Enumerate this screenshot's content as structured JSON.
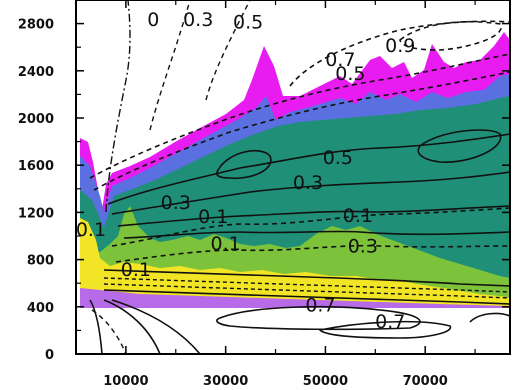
{
  "chart_data": {
    "type": "contour",
    "title": "",
    "xlabel": "",
    "ylabel": "",
    "xlim": [
      0,
      87000
    ],
    "ylim": [
      0,
      3000
    ],
    "x_ticks": [
      10000,
      30000,
      50000,
      70000
    ],
    "x_tick_labels": [
      "10000",
      "30000",
      "50000",
      "70000"
    ],
    "y_ticks": [
      0,
      400,
      800,
      1200,
      1600,
      2000,
      2400,
      2800
    ],
    "y_tick_labels": [
      "0",
      "400",
      "800",
      "1200",
      "1600",
      "2000",
      "2400",
      "2800"
    ],
    "grid": false,
    "legend": "none",
    "fill_colors": {
      "magenta": "#e81cf0",
      "blue": "#5a6fe0",
      "teal": "#1f8f78",
      "green": "#7cc23a",
      "yellow": "#f2e526"
    },
    "contour_labels": [
      {
        "text": "0",
        "x": 15500,
        "y": 2780
      },
      {
        "text": "0.3",
        "x": 24500,
        "y": 2780
      },
      {
        "text": "0.5",
        "x": 34500,
        "y": 2760
      },
      {
        "text": "0.7",
        "x": 53000,
        "y": 2440
      },
      {
        "text": "0.9",
        "x": 65000,
        "y": 2560
      },
      {
        "text": "0.5",
        "x": 55000,
        "y": 2320
      },
      {
        "text": "0.5",
        "x": 52500,
        "y": 1610
      },
      {
        "text": "0.3",
        "x": 46500,
        "y": 1400
      },
      {
        "text": "0.3",
        "x": 20000,
        "y": 1230
      },
      {
        "text": "0.1",
        "x": 27500,
        "y": 1110
      },
      {
        "text": "0.1",
        "x": 56500,
        "y": 1120
      },
      {
        "text": "0.1",
        "x": 30000,
        "y": 880
      },
      {
        "text": "0.3",
        "x": 57500,
        "y": 860
      },
      {
        "text": "0.1",
        "x": 3000,
        "y": 1000
      },
      {
        "text": "0.1",
        "x": 12000,
        "y": 660
      },
      {
        "text": "0.7",
        "x": 49000,
        "y": 360
      },
      {
        "text": "0.7",
        "x": 63000,
        "y": 220
      }
    ]
  }
}
